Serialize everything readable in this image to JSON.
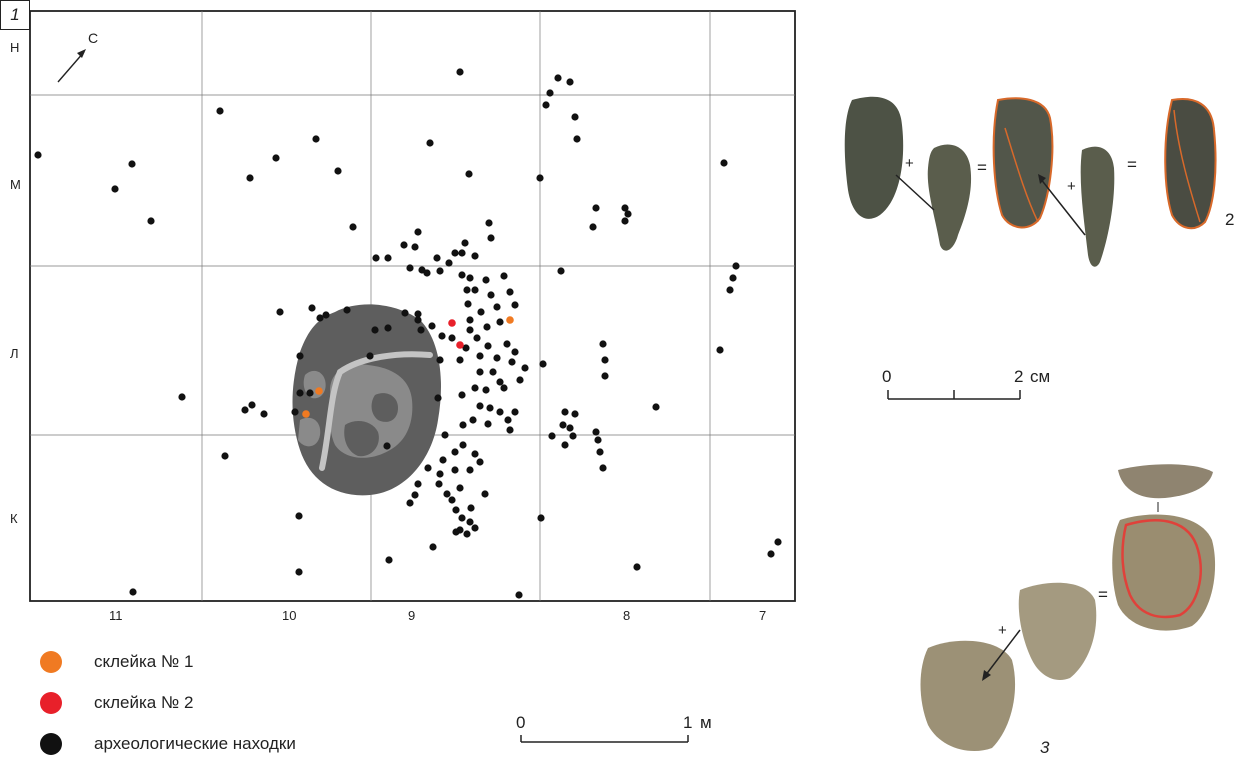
{
  "plan": {
    "compass": {
      "label": "С",
      "icon": "north-arrow-icon"
    },
    "row_labels": [
      "Н",
      "М",
      "Л",
      "К"
    ],
    "col_labels": [
      "11",
      "10",
      "9",
      "8",
      "7"
    ],
    "figure_number": "1",
    "colors": {
      "dark_stone": "#5e5e5e",
      "mid_stone": "#8a8a8a",
      "light_stone": "#c4c4c4",
      "find": "#111111",
      "glue1": "#f07a22",
      "glue2": "#e8202a"
    }
  },
  "scale_main": {
    "zero": "0",
    "end": "1",
    "unit": "м"
  },
  "scale_small": {
    "zero": "0",
    "end": "2",
    "unit": "см"
  },
  "legend": [
    {
      "label": "склейка № 1",
      "color": "#f07a22"
    },
    {
      "label": "склейка № 2",
      "color": "#e8202a"
    },
    {
      "label": "археологические находки",
      "color": "#111111"
    }
  ],
  "refit2": {
    "plus1": "+",
    "eq1": "=",
    "plus2": "+",
    "eq2": "=",
    "label": "2"
  },
  "refit3": {
    "plus": "+",
    "eq": "=",
    "label": "3"
  }
}
